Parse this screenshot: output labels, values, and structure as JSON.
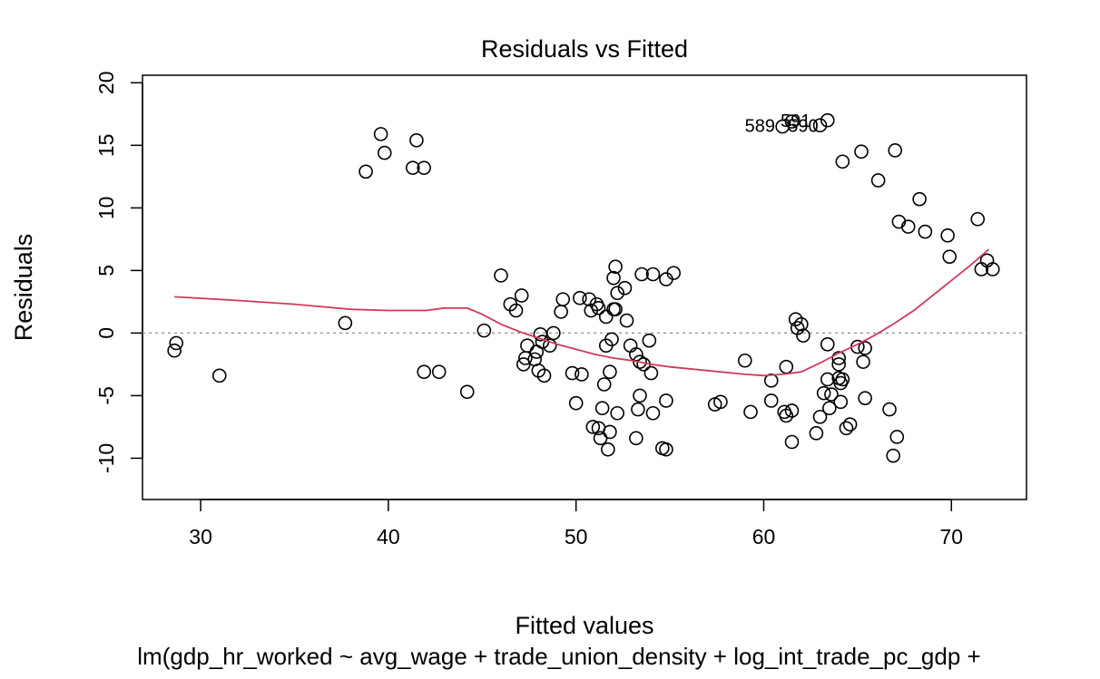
{
  "chart_data": {
    "type": "scatter",
    "title": "Residuals vs Fitted",
    "xlabel": "Fitted values",
    "ylabel": "Residuals",
    "caption": "lm(gdp_hr_worked ~ avg_wage + trade_union_density + log_int_trade_pc_gdp +",
    "xlim": [
      26.9,
      74.0
    ],
    "ylim": [
      -13.3,
      20.6
    ],
    "x_ticks": [
      30,
      40,
      50,
      60,
      70
    ],
    "y_ticks": [
      -10,
      -5,
      0,
      5,
      10,
      15,
      20
    ],
    "reference_line": {
      "y": 0,
      "style": "dotted",
      "color": "#999999"
    },
    "smooth_color": "#d03a5c",
    "point_labels": [
      {
        "text": "591",
        "x": 61.7,
        "y": 16.9
      },
      {
        "text": "589",
        "x": 59.8,
        "y": 16.5
      },
      {
        "text": "590",
        "x": 62.1,
        "y": 16.5
      }
    ],
    "points": [
      {
        "x": 28.6,
        "y": -1.4
      },
      {
        "x": 28.7,
        "y": -0.8
      },
      {
        "x": 31.0,
        "y": -3.4
      },
      {
        "x": 37.7,
        "y": 0.8
      },
      {
        "x": 38.8,
        "y": 12.9
      },
      {
        "x": 39.6,
        "y": 15.9
      },
      {
        "x": 39.8,
        "y": 14.4
      },
      {
        "x": 41.3,
        "y": 13.2
      },
      {
        "x": 41.5,
        "y": 15.4
      },
      {
        "x": 41.9,
        "y": 13.2
      },
      {
        "x": 41.9,
        "y": -3.1
      },
      {
        "x": 42.7,
        "y": -3.1
      },
      {
        "x": 44.2,
        "y": -4.7
      },
      {
        "x": 45.1,
        "y": 0.2
      },
      {
        "x": 46.0,
        "y": 4.6
      },
      {
        "x": 46.5,
        "y": 2.3
      },
      {
        "x": 46.8,
        "y": 1.8
      },
      {
        "x": 47.1,
        "y": 3.0
      },
      {
        "x": 47.2,
        "y": -2.5
      },
      {
        "x": 47.3,
        "y": -2.0
      },
      {
        "x": 47.4,
        "y": -1.0
      },
      {
        "x": 47.8,
        "y": -2.1
      },
      {
        "x": 47.9,
        "y": -1.5
      },
      {
        "x": 48.0,
        "y": -3.0
      },
      {
        "x": 48.1,
        "y": -0.1
      },
      {
        "x": 48.2,
        "y": -0.7
      },
      {
        "x": 48.3,
        "y": -3.4
      },
      {
        "x": 48.6,
        "y": -1.0
      },
      {
        "x": 48.8,
        "y": 0.0
      },
      {
        "x": 49.2,
        "y": 1.7
      },
      {
        "x": 49.3,
        "y": 2.7
      },
      {
        "x": 49.8,
        "y": -3.2
      },
      {
        "x": 50.0,
        "y": -5.6
      },
      {
        "x": 50.2,
        "y": 2.8
      },
      {
        "x": 50.3,
        "y": -3.3
      },
      {
        "x": 50.7,
        "y": 2.7
      },
      {
        "x": 50.8,
        "y": 1.8
      },
      {
        "x": 50.9,
        "y": -7.5
      },
      {
        "x": 51.1,
        "y": 2.3
      },
      {
        "x": 51.2,
        "y": -7.6
      },
      {
        "x": 51.2,
        "y": 2.0
      },
      {
        "x": 51.3,
        "y": -8.4
      },
      {
        "x": 51.4,
        "y": -6.0
      },
      {
        "x": 51.5,
        "y": -4.1
      },
      {
        "x": 51.6,
        "y": -1.0
      },
      {
        "x": 51.6,
        "y": 1.3
      },
      {
        "x": 51.7,
        "y": -9.3
      },
      {
        "x": 51.8,
        "y": -7.9
      },
      {
        "x": 51.8,
        "y": -3.1
      },
      {
        "x": 51.9,
        "y": -0.5
      },
      {
        "x": 52.0,
        "y": 4.4
      },
      {
        "x": 52.0,
        "y": 1.9
      },
      {
        "x": 52.1,
        "y": 1.9
      },
      {
        "x": 52.1,
        "y": 5.3
      },
      {
        "x": 52.2,
        "y": 3.2
      },
      {
        "x": 52.2,
        "y": -6.4
      },
      {
        "x": 52.6,
        "y": 3.6
      },
      {
        "x": 52.7,
        "y": 1.0
      },
      {
        "x": 52.9,
        "y": -1.0
      },
      {
        "x": 53.2,
        "y": -1.7
      },
      {
        "x": 53.2,
        "y": -8.4
      },
      {
        "x": 53.3,
        "y": -6.1
      },
      {
        "x": 53.4,
        "y": -2.3
      },
      {
        "x": 53.4,
        "y": -5.0
      },
      {
        "x": 53.5,
        "y": 4.7
      },
      {
        "x": 53.6,
        "y": -2.5
      },
      {
        "x": 53.9,
        "y": -0.6
      },
      {
        "x": 54.0,
        "y": -3.2
      },
      {
        "x": 54.1,
        "y": -6.4
      },
      {
        "x": 54.1,
        "y": 4.7
      },
      {
        "x": 54.6,
        "y": -9.2
      },
      {
        "x": 54.8,
        "y": -9.3
      },
      {
        "x": 54.8,
        "y": -5.4
      },
      {
        "x": 54.8,
        "y": 4.3
      },
      {
        "x": 55.2,
        "y": 4.8
      },
      {
        "x": 57.4,
        "y": -5.7
      },
      {
        "x": 57.7,
        "y": -5.5
      },
      {
        "x": 59.0,
        "y": -2.2
      },
      {
        "x": 59.3,
        "y": -6.3
      },
      {
        "x": 60.4,
        "y": -5.4
      },
      {
        "x": 60.4,
        "y": -3.8
      },
      {
        "x": 61.0,
        "y": 16.5
      },
      {
        "x": 61.1,
        "y": -6.3
      },
      {
        "x": 61.2,
        "y": -6.6
      },
      {
        "x": 61.2,
        "y": -2.7
      },
      {
        "x": 61.5,
        "y": -8.7
      },
      {
        "x": 61.5,
        "y": -6.2
      },
      {
        "x": 61.5,
        "y": 16.9
      },
      {
        "x": 61.7,
        "y": 1.1
      },
      {
        "x": 61.8,
        "y": 0.4
      },
      {
        "x": 62.0,
        "y": 0.7
      },
      {
        "x": 62.1,
        "y": -0.2
      },
      {
        "x": 62.8,
        "y": -8.0
      },
      {
        "x": 63.0,
        "y": -6.7
      },
      {
        "x": 63.0,
        "y": 16.6
      },
      {
        "x": 63.2,
        "y": -4.8
      },
      {
        "x": 63.4,
        "y": -0.9
      },
      {
        "x": 63.4,
        "y": -3.7
      },
      {
        "x": 63.4,
        "y": 17.0
      },
      {
        "x": 63.5,
        "y": -6.0
      },
      {
        "x": 63.6,
        "y": -4.9
      },
      {
        "x": 64.0,
        "y": -2.0
      },
      {
        "x": 64.0,
        "y": -2.5
      },
      {
        "x": 64.0,
        "y": -3.6
      },
      {
        "x": 64.1,
        "y": -4.0
      },
      {
        "x": 64.1,
        "y": -5.5
      },
      {
        "x": 64.2,
        "y": 13.7
      },
      {
        "x": 64.2,
        "y": -3.7
      },
      {
        "x": 64.4,
        "y": -7.6
      },
      {
        "x": 64.6,
        "y": -7.3
      },
      {
        "x": 65.0,
        "y": -1.1
      },
      {
        "x": 65.2,
        "y": 14.5
      },
      {
        "x": 65.3,
        "y": -2.3
      },
      {
        "x": 65.4,
        "y": -1.2
      },
      {
        "x": 65.4,
        "y": -5.2
      },
      {
        "x": 66.1,
        "y": 12.2
      },
      {
        "x": 66.7,
        "y": -6.1
      },
      {
        "x": 66.9,
        "y": -9.8
      },
      {
        "x": 67.0,
        "y": 14.6
      },
      {
        "x": 67.1,
        "y": -8.3
      },
      {
        "x": 67.2,
        "y": 8.9
      },
      {
        "x": 67.7,
        "y": 8.5
      },
      {
        "x": 68.3,
        "y": 10.7
      },
      {
        "x": 68.6,
        "y": 8.1
      },
      {
        "x": 69.8,
        "y": 7.8
      },
      {
        "x": 69.9,
        "y": 6.1
      },
      {
        "x": 71.4,
        "y": 9.1
      },
      {
        "x": 71.6,
        "y": 5.1
      },
      {
        "x": 71.9,
        "y": 5.8
      },
      {
        "x": 72.2,
        "y": 5.1
      }
    ],
    "smooth": [
      {
        "x": 28.6,
        "y": 2.9
      },
      {
        "x": 32.0,
        "y": 2.6
      },
      {
        "x": 35.0,
        "y": 2.3
      },
      {
        "x": 38.0,
        "y": 1.9
      },
      {
        "x": 40.0,
        "y": 1.8
      },
      {
        "x": 42.0,
        "y": 1.8
      },
      {
        "x": 43.0,
        "y": 2.0
      },
      {
        "x": 44.2,
        "y": 2.0
      },
      {
        "x": 45.0,
        "y": 1.5
      },
      {
        "x": 46.0,
        "y": 0.7
      },
      {
        "x": 47.0,
        "y": 0.1
      },
      {
        "x": 48.0,
        "y": -0.4
      },
      {
        "x": 49.0,
        "y": -0.9
      },
      {
        "x": 50.0,
        "y": -1.3
      },
      {
        "x": 51.0,
        "y": -1.7
      },
      {
        "x": 52.0,
        "y": -2.0
      },
      {
        "x": 53.0,
        "y": -2.2
      },
      {
        "x": 54.0,
        "y": -2.5
      },
      {
        "x": 55.0,
        "y": -2.7
      },
      {
        "x": 57.0,
        "y": -3.0
      },
      {
        "x": 59.0,
        "y": -3.3
      },
      {
        "x": 60.0,
        "y": -3.4
      },
      {
        "x": 61.0,
        "y": -3.3
      },
      {
        "x": 62.0,
        "y": -3.1
      },
      {
        "x": 63.0,
        "y": -2.4
      },
      {
        "x": 64.0,
        "y": -1.6
      },
      {
        "x": 65.0,
        "y": -0.9
      },
      {
        "x": 66.0,
        "y": -0.1
      },
      {
        "x": 67.0,
        "y": 0.8
      },
      {
        "x": 68.0,
        "y": 1.8
      },
      {
        "x": 69.0,
        "y": 3.0
      },
      {
        "x": 70.0,
        "y": 4.2
      },
      {
        "x": 71.0,
        "y": 5.4
      },
      {
        "x": 72.0,
        "y": 6.7
      }
    ]
  }
}
